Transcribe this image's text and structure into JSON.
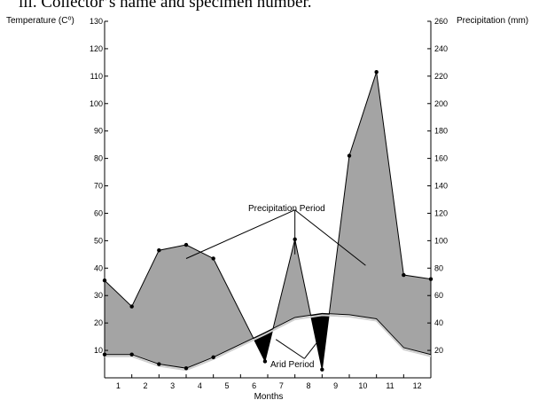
{
  "header_text": "iii.    Collector’s name and specimen number.",
  "chart_data": {
    "type": "area",
    "title": "",
    "xlabel": "Months",
    "ylabel_left": "Temperature (C⁰)",
    "ylabel_right": "Precipitation (mm)",
    "x": [
      1,
      2,
      3,
      4,
      5,
      6,
      7,
      8,
      9,
      10,
      11,
      12
    ],
    "x_tick_labels": [
      "1",
      "2",
      "3",
      "4",
      "5",
      "6",
      "7",
      "8",
      "9",
      "10",
      "11",
      "12"
    ],
    "xlim": [
      0.5,
      12.5
    ],
    "ylim_left": [
      0,
      130
    ],
    "ylim_right": [
      0,
      260
    ],
    "y_ticks_left": [
      10,
      20,
      30,
      40,
      50,
      60,
      70,
      80,
      90,
      100,
      110,
      120,
      130
    ],
    "y_ticks_right": [
      20,
      40,
      60,
      80,
      100,
      120,
      140,
      160,
      180,
      200,
      220,
      240,
      260
    ],
    "grid": false,
    "series": [
      {
        "axis": "left",
        "x": [
          0.5,
          1.5,
          2.5,
          3.5,
          4.5,
          6.4,
          7.5,
          8.5,
          9.5,
          10.5,
          11.5,
          12.5
        ],
        "values": [
          8.5,
          8.5,
          5,
          3.5,
          7.5,
          16.5,
          22,
          23.5,
          23,
          21.5,
          11,
          8.5
        ]
      },
      {
        "axis": "right",
        "x": [
          0.5,
          1.5,
          2.5,
          3.5,
          4.5,
          6.4,
          7.5,
          8.5,
          9.5,
          10.5,
          11.5,
          12.5
        ],
        "values": [
          71,
          52,
          93,
          97,
          87,
          12,
          101,
          6,
          162,
          223,
          75,
          72
        ]
      }
    ],
    "annotations": [
      {
        "text": "Precipitation Period",
        "x": 7.5,
        "y": 62.5
      },
      {
        "text": "Arid Period",
        "x": 7.85,
        "y": 7
      }
    ],
    "colors": {
      "humid_fill": "#a4a4a4",
      "arid_fill": "#000000",
      "line": "#000000"
    }
  }
}
